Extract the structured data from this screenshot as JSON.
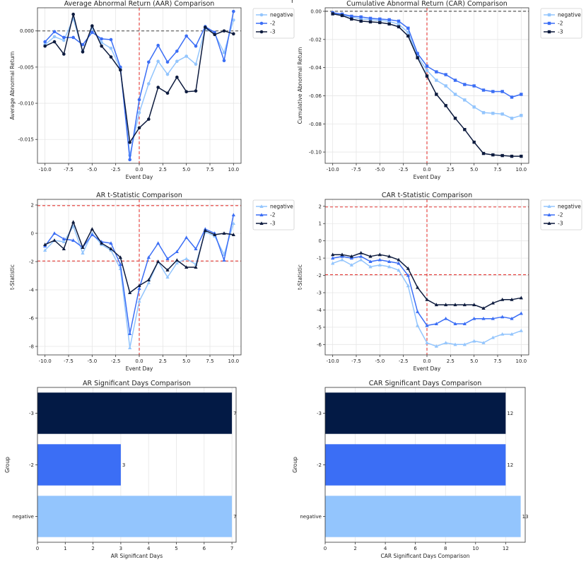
{
  "figure": {
    "supertitle_fragment": "r"
  },
  "chart_data": [
    {
      "id": "aar",
      "type": "line",
      "title": "Average Abnormal Return (AAR) Comparison",
      "xlabel": "Event Day",
      "ylabel": "Average Abnormal Return",
      "xlim": [
        -10.8,
        10.8
      ],
      "ylim": [
        -0.0183,
        0.0032
      ],
      "xticks": [
        -10,
        -7.5,
        -5,
        -2.5,
        0,
        2.5,
        5,
        7.5,
        10
      ],
      "xtick_labels": [
        "-10.0",
        "-7.5",
        "-5.0",
        "-2.5",
        "0.0",
        "2.5",
        "5.0",
        "7.5",
        "10.0"
      ],
      "yticks": [
        0,
        -0.005,
        -0.01,
        -0.015
      ],
      "ytick_labels": [
        "0.000",
        "-0.005",
        "-0.010",
        "-0.015"
      ],
      "hlines": [
        {
          "y": 0,
          "style": "dashed",
          "color": "#444444"
        }
      ],
      "vlines": [
        {
          "x": 0,
          "style": "dashed",
          "color": "#e53935"
        }
      ],
      "grid": true,
      "legend": "outside-top-right",
      "x": [
        -10,
        -9,
        -8,
        -7,
        -6,
        -5,
        -4,
        -3,
        -2,
        -1,
        0,
        1,
        2,
        3,
        4,
        5,
        6,
        7,
        8,
        9,
        10
      ],
      "series": [
        {
          "name": "negative",
          "color": "#93c5fd",
          "marker": "circle",
          "values": [
            -0.0019,
            -0.0008,
            -0.0013,
            0.0017,
            -0.0028,
            0.0004,
            -0.0016,
            -0.0024,
            -0.0052,
            -0.0172,
            -0.0113,
            -0.0073,
            -0.0042,
            -0.006,
            -0.0042,
            -0.0035,
            -0.0046,
            0.0003,
            -0.0004,
            -0.003,
            0.0015
          ]
        },
        {
          "name": "-2",
          "color": "#3b6ef5",
          "marker": "circle",
          "values": [
            -0.0015,
            -0.0001,
            -0.0009,
            -0.0009,
            -0.0019,
            -0.0002,
            -0.0011,
            -0.0012,
            -0.005,
            -0.0178,
            -0.0095,
            -0.0043,
            -0.002,
            -0.0043,
            -0.0028,
            -0.0007,
            -0.0021,
            0.0006,
            -0.0002,
            -0.0041,
            0.0027
          ]
        },
        {
          "name": "-3",
          "color": "#0d1b3e",
          "marker": "circle",
          "values": [
            -0.0021,
            -0.0015,
            -0.0032,
            0.0023,
            -0.0029,
            0.0007,
            -0.0021,
            -0.0036,
            -0.0054,
            -0.0154,
            -0.0134,
            -0.0122,
            -0.0078,
            -0.0086,
            -0.0064,
            -0.0084,
            -0.0083,
            0.0005,
            -0.0005,
            0.0,
            -0.0004
          ]
        }
      ]
    },
    {
      "id": "car",
      "type": "line",
      "title": "Cumulative Abnormal Return (CAR) Comparison",
      "xlabel": "Event Day",
      "ylabel": "Cumulative Abnormal Return",
      "xlim": [
        -10.8,
        10.8
      ],
      "ylim": [
        -0.108,
        0.0025
      ],
      "xticks": [
        -10,
        -7.5,
        -5,
        -2.5,
        0,
        2.5,
        5,
        7.5,
        10
      ],
      "xtick_labels": [
        "-10.0",
        "-7.5",
        "-5.0",
        "-2.5",
        "0.0",
        "2.5",
        "5.0",
        "7.5",
        "10.0"
      ],
      "yticks": [
        0,
        -0.02,
        -0.04,
        -0.06,
        -0.08,
        -0.1
      ],
      "ytick_labels": [
        "0.00",
        "-0.02",
        "-0.04",
        "-0.06",
        "-0.08",
        "-0.10"
      ],
      "hlines": [
        {
          "y": 0,
          "style": "dashed",
          "color": "#444444"
        }
      ],
      "vlines": [
        {
          "x": 0,
          "style": "dashed",
          "color": "#e53935"
        }
      ],
      "grid": true,
      "legend": "outside-top-right",
      "x": [
        -10,
        -9,
        -8,
        -7,
        -6,
        -5,
        -4,
        -3,
        -2,
        -1,
        0,
        1,
        2,
        3,
        4,
        5,
        6,
        7,
        8,
        9,
        10
      ],
      "series": [
        {
          "name": "negative",
          "color": "#93c5fd",
          "marker": "square",
          "values": [
            -0.0015,
            -0.0025,
            -0.004,
            -0.0055,
            -0.006,
            -0.0065,
            -0.0072,
            -0.0092,
            -0.015,
            -0.032,
            -0.042,
            -0.049,
            -0.053,
            -0.059,
            -0.063,
            -0.068,
            -0.072,
            -0.0725,
            -0.073,
            -0.076,
            -0.074
          ]
        },
        {
          "name": "-2",
          "color": "#3b6ef5",
          "marker": "square",
          "values": [
            -0.001,
            -0.002,
            -0.0035,
            -0.004,
            -0.005,
            -0.0055,
            -0.006,
            -0.007,
            -0.012,
            -0.03,
            -0.039,
            -0.043,
            -0.045,
            -0.049,
            -0.052,
            -0.053,
            -0.056,
            -0.057,
            -0.057,
            -0.061,
            -0.059
          ]
        },
        {
          "name": "-3",
          "color": "#0d1b3e",
          "marker": "square",
          "values": [
            -0.0018,
            -0.003,
            -0.0055,
            -0.007,
            -0.0075,
            -0.008,
            -0.009,
            -0.011,
            -0.0175,
            -0.033,
            -0.046,
            -0.059,
            -0.067,
            -0.076,
            -0.084,
            -0.093,
            -0.101,
            -0.102,
            -0.1025,
            -0.103,
            -0.103
          ]
        }
      ]
    },
    {
      "id": "ar_t",
      "type": "line",
      "title": "AR t-Statistic Comparison",
      "xlabel": "Event Day",
      "ylabel": "t-Statistic",
      "xlim": [
        -10.8,
        10.8
      ],
      "ylim": [
        -8.6,
        2.4
      ],
      "xticks": [
        -10,
        -7.5,
        -5,
        -2.5,
        0,
        2.5,
        5,
        7.5,
        10
      ],
      "xtick_labels": [
        "-10.0",
        "-7.5",
        "-5.0",
        "-2.5",
        "0.0",
        "2.5",
        "5.0",
        "7.5",
        "10.0"
      ],
      "yticks": [
        2,
        0,
        -2,
        -4,
        -6,
        -8
      ],
      "ytick_labels": [
        "2",
        "0",
        "-2",
        "-4",
        "-6",
        "-8"
      ],
      "hlines": [
        {
          "y": 1.96,
          "style": "dashed",
          "color": "#e53935"
        },
        {
          "y": -1.96,
          "style": "dashed",
          "color": "#e53935"
        }
      ],
      "vlines": [
        {
          "x": 0,
          "style": "dashed",
          "color": "#e53935"
        }
      ],
      "grid": true,
      "legend": "outside-top-right",
      "x": [
        -10,
        -9,
        -8,
        -7,
        -6,
        -5,
        -4,
        -3,
        -2,
        -1,
        0,
        1,
        2,
        3,
        4,
        5,
        6,
        7,
        8,
        9,
        10
      ],
      "series": [
        {
          "name": "negative",
          "color": "#93c5fd",
          "marker": "triangle",
          "values": [
            -1.2,
            -0.5,
            -0.6,
            0.5,
            -1.4,
            0.0,
            -0.8,
            -1.2,
            -2.5,
            -8.1,
            -4.8,
            -3.5,
            -2.0,
            -3.1,
            -2.1,
            -1.8,
            -2.2,
            0.1,
            -0.2,
            -1.5,
            0.7
          ]
        },
        {
          "name": "-2",
          "color": "#3b6ef5",
          "marker": "triangle",
          "values": [
            -0.9,
            0.0,
            -0.4,
            -0.5,
            -1.0,
            -0.1,
            -0.6,
            -0.7,
            -2.2,
            -7.1,
            -3.9,
            -1.7,
            -0.7,
            -1.8,
            -1.3,
            -0.3,
            -1.1,
            0.3,
            0.0,
            -1.9,
            1.3
          ]
        },
        {
          "name": "-3",
          "color": "#0d1b3e",
          "marker": "triangle",
          "values": [
            -0.8,
            -0.5,
            -1.1,
            0.8,
            -1.0,
            0.3,
            -0.7,
            -1.1,
            -1.7,
            -4.2,
            -3.7,
            -3.3,
            -2.0,
            -2.6,
            -1.9,
            -2.4,
            -2.4,
            0.2,
            -0.1,
            0.0,
            -0.1
          ]
        }
      ]
    },
    {
      "id": "car_t",
      "type": "line",
      "title": "CAR t-Statistic Comparison",
      "xlabel": "Event Day",
      "ylabel": "t-Statistic",
      "xlim": [
        -10.8,
        10.8
      ],
      "ylim": [
        -6.6,
        2.4
      ],
      "xticks": [
        -10,
        -7.5,
        -5,
        -2.5,
        0,
        2.5,
        5,
        7.5,
        10
      ],
      "xtick_labels": [
        "-10.0",
        "-7.5",
        "-5.0",
        "-2.5",
        "0.0",
        "2.5",
        "5.0",
        "7.5",
        "10.0"
      ],
      "yticks": [
        2,
        1,
        0,
        -1,
        -2,
        -3,
        -4,
        -5,
        -6
      ],
      "ytick_labels": [
        "2",
        "1",
        "0",
        "-1",
        "-2",
        "-3",
        "-4",
        "-5",
        "-6"
      ],
      "hlines": [
        {
          "y": 1.96,
          "style": "dashed",
          "color": "#e53935"
        },
        {
          "y": -1.96,
          "style": "dashed",
          "color": "#e53935"
        }
      ],
      "vlines": [
        {
          "x": 0,
          "style": "dashed",
          "color": "#e53935"
        }
      ],
      "grid": true,
      "legend": "outside-top-right",
      "x": [
        -10,
        -9,
        -8,
        -7,
        -6,
        -5,
        -4,
        -3,
        -2,
        -1,
        0,
        1,
        2,
        3,
        4,
        5,
        6,
        7,
        8,
        9,
        10
      ],
      "series": [
        {
          "name": "negative",
          "color": "#93c5fd",
          "marker": "triangle",
          "values": [
            -1.3,
            -1.1,
            -1.4,
            -1.1,
            -1.5,
            -1.4,
            -1.5,
            -1.7,
            -2.6,
            -4.9,
            -5.9,
            -6.1,
            -5.9,
            -6.0,
            -6.0,
            -5.8,
            -5.9,
            -5.6,
            -5.4,
            -5.4,
            -5.2
          ]
        },
        {
          "name": "-2",
          "color": "#3b6ef5",
          "marker": "triangle",
          "values": [
            -1.0,
            -0.9,
            -1.0,
            -0.9,
            -1.2,
            -1.1,
            -1.2,
            -1.3,
            -2.0,
            -4.1,
            -4.9,
            -4.8,
            -4.5,
            -4.8,
            -4.8,
            -4.5,
            -4.5,
            -4.5,
            -4.4,
            -4.5,
            -4.2
          ]
        },
        {
          "name": "-3",
          "color": "#0d1b3e",
          "marker": "triangle",
          "values": [
            -0.8,
            -0.8,
            -0.9,
            -0.7,
            -0.9,
            -0.8,
            -0.9,
            -1.1,
            -1.6,
            -2.7,
            -3.4,
            -3.7,
            -3.7,
            -3.7,
            -3.7,
            -3.7,
            -3.9,
            -3.6,
            -3.4,
            -3.4,
            -3.3
          ]
        }
      ]
    },
    {
      "id": "ar_sig",
      "type": "bar",
      "orientation": "horizontal",
      "title": "AR Significant Days Comparison",
      "xlabel": "AR Significant Days",
      "ylabel": "Group",
      "xlim": [
        0,
        7.15
      ],
      "xticks": [
        0,
        1,
        2,
        3,
        4,
        5,
        6,
        7
      ],
      "xtick_labels": [
        "0",
        "1",
        "2",
        "3",
        "4",
        "5",
        "6",
        "7"
      ],
      "grid": true,
      "categories": [
        "-3",
        "-2",
        "negative"
      ],
      "values": [
        7,
        3,
        7
      ],
      "value_labels": [
        "7",
        "3",
        "7"
      ],
      "colors": [
        "#031a45",
        "#3b6ef5",
        "#93c5fd"
      ]
    },
    {
      "id": "car_sig",
      "type": "bar",
      "orientation": "horizontal",
      "title": "CAR Significant Days Comparison",
      "xlabel": "CAR Significant Days Comparison",
      "ylabel": "Group",
      "xlim": [
        0,
        13.3
      ],
      "xticks": [
        0,
        2,
        4,
        6,
        8,
        10,
        12
      ],
      "xtick_labels": [
        "0",
        "2",
        "4",
        "6",
        "8",
        "10",
        "12"
      ],
      "grid": true,
      "categories": [
        "-3",
        "-2",
        "negative"
      ],
      "values": [
        12,
        12,
        13
      ],
      "value_labels": [
        "12",
        "12",
        "13"
      ],
      "colors": [
        "#031a45",
        "#3b6ef5",
        "#93c5fd"
      ]
    }
  ]
}
